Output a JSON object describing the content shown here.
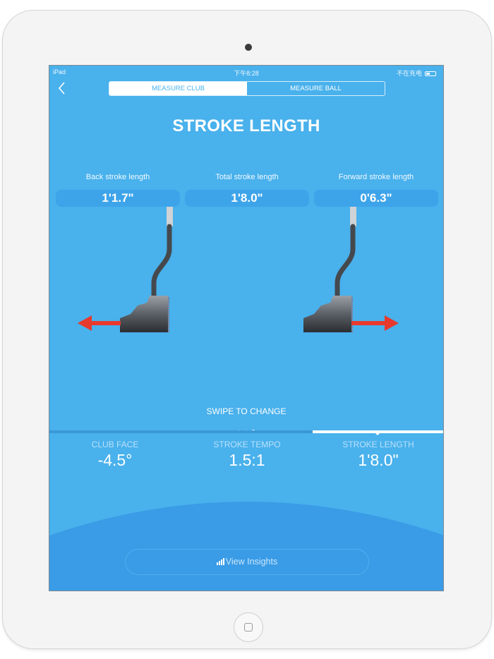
{
  "status_bar": {
    "device": "iPad",
    "time": "下午8:28",
    "charging": "不在充电"
  },
  "nav": {
    "back_icon": "chevron-left-icon",
    "segments": [
      {
        "label": "MEASURE CLUB",
        "selected": true
      },
      {
        "label": "MEASURE BALL",
        "selected": false
      }
    ]
  },
  "title": "STROKE LENGTH",
  "metrics": [
    {
      "label": "Back stroke length",
      "value": "1'1.7\""
    },
    {
      "label": "Total stroke length",
      "value": "1'8.0\""
    },
    {
      "label": "Forward stroke length",
      "value": "0'6.3\""
    }
  ],
  "swipe_hint": "SWIPE TO CHANGE",
  "page_indicator": {
    "count": 3,
    "active": 3
  },
  "tabs": [
    {
      "label": "CLUB FACE",
      "value": "-4.5°"
    },
    {
      "label": "STROKE TEMPO",
      "value": "1.5:1"
    },
    {
      "label": "STROKE LENGTH",
      "value": "1'8.0\"",
      "selected": true
    }
  ],
  "insights_button": {
    "label": "View Insights",
    "icon": "bar-chart-icon"
  },
  "colors": {
    "background": "#49b1ec",
    "arc": "#3a9be6",
    "arrow": "#e8392f"
  }
}
